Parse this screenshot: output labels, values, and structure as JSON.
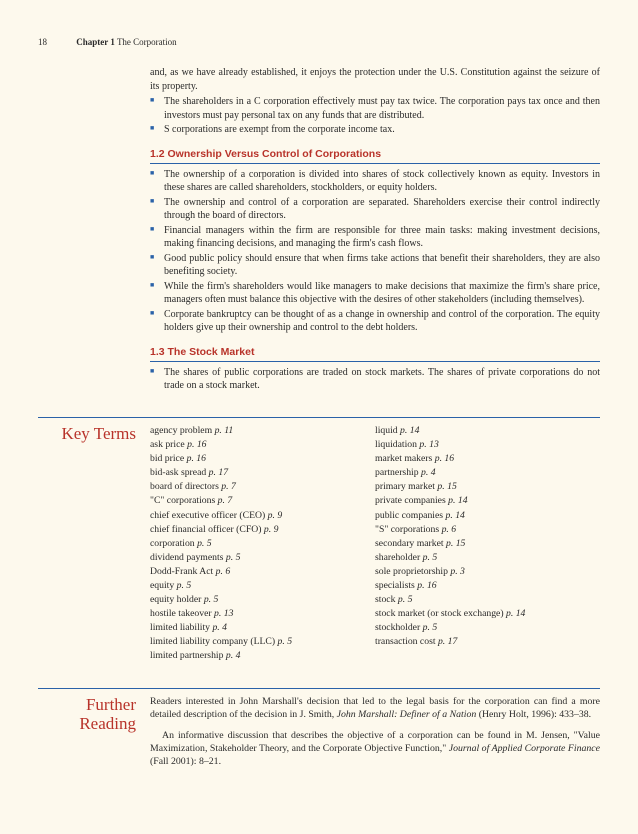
{
  "header": {
    "pageNumber": "18",
    "chapterLabel": "Chapter 1",
    "chapterTitle": "The Corporation"
  },
  "intro": {
    "para": "and, as we have already established, it enjoys the protection under the U.S. Constitution against the seizure of its property.",
    "bullets": [
      "The shareholders in a C corporation effectively must pay tax twice. The corporation pays tax once and then investors must pay personal tax on any funds that are distributed.",
      "S corporations are exempt from the corporate income tax."
    ]
  },
  "section12": {
    "heading": "1.2  Ownership Versus Control of Corporations",
    "bullets": [
      "The ownership of a corporation is divided into shares of stock collectively known as equity. Investors in these shares are called shareholders, stockholders, or equity holders.",
      "The ownership and control of a corporation are separated. Shareholders exercise their control indirectly through the board of directors.",
      "Financial managers within the firm are responsible for three main tasks: making investment decisions, making financing decisions, and managing the firm's cash flows.",
      "Good public policy should ensure that when firms take actions that benefit their shareholders, they are also benefiting society.",
      "While the firm's shareholders would like managers to make decisions that maximize the firm's share price, managers often must balance this objective with the desires of other stakeholders (including themselves).",
      "Corporate bankruptcy can be thought of as a change in ownership and control of the corporation. The equity holders give up their ownership and control to the debt holders."
    ]
  },
  "section13": {
    "heading": "1.3  The Stock Market",
    "bullets": [
      "The shares of public corporations are traded on stock markets. The shares of private corporations do not trade on a stock market."
    ]
  },
  "keyTerms": {
    "label": "Key Terms",
    "left": [
      {
        "t": "agency problem",
        "p": "p. 11"
      },
      {
        "t": "ask price",
        "p": "p. 16"
      },
      {
        "t": "bid price",
        "p": "p. 16"
      },
      {
        "t": "bid-ask spread",
        "p": "p. 17"
      },
      {
        "t": "board of directors",
        "p": "p. 7"
      },
      {
        "t": "\"C\" corporations",
        "p": "p. 7"
      },
      {
        "t": "chief executive officer (CEO)",
        "p": "p. 9"
      },
      {
        "t": "chief financial officer (CFO)",
        "p": "p. 9"
      },
      {
        "t": "corporation",
        "p": "p. 5"
      },
      {
        "t": "dividend payments",
        "p": "p. 5"
      },
      {
        "t": "Dodd-Frank Act",
        "p": "p. 6"
      },
      {
        "t": "equity",
        "p": "p. 5"
      },
      {
        "t": "equity holder",
        "p": "p. 5"
      },
      {
        "t": "hostile takeover",
        "p": "p. 13"
      },
      {
        "t": "limited liability",
        "p": "p. 4"
      },
      {
        "t": "limited liability company (LLC)",
        "p": "p. 5"
      },
      {
        "t": "limited partnership",
        "p": "p. 4"
      }
    ],
    "right": [
      {
        "t": "liquid",
        "p": "p. 14"
      },
      {
        "t": "liquidation",
        "p": "p. 13"
      },
      {
        "t": "market makers",
        "p": "p. 16"
      },
      {
        "t": "partnership",
        "p": "p. 4"
      },
      {
        "t": "primary market",
        "p": "p. 15"
      },
      {
        "t": "private companies",
        "p": "p. 14"
      },
      {
        "t": "public companies",
        "p": "p. 14"
      },
      {
        "t": "\"S\" corporations",
        "p": "p. 6"
      },
      {
        "t": "secondary market",
        "p": "p. 15"
      },
      {
        "t": "shareholder",
        "p": "p. 5"
      },
      {
        "t": "sole proprietorship",
        "p": "p. 3"
      },
      {
        "t": "specialists",
        "p": "p. 16"
      },
      {
        "t": "stock",
        "p": "p. 5"
      },
      {
        "t": "stock market (or stock exchange)",
        "p": "p. 14"
      },
      {
        "t": "stockholder",
        "p": "p. 5"
      },
      {
        "t": "transaction cost",
        "p": "p. 17"
      }
    ]
  },
  "furtherReading": {
    "label": "Further Reading",
    "p1_a": "Readers interested in John Marshall's decision that led to the legal basis for the corporation can find a more detailed description of the decision in J. Smith, ",
    "p1_i": "John Marshall: Definer of a Nation",
    "p1_b": " (Henry Holt, 1996): 433–38.",
    "p2_a": "An informative discussion that describes the objective of a corporation can be found in M. Jensen, \"Value Maximization, Stakeholder Theory, and the Corporate Objective Function,\" ",
    "p2_i": "Journal of Applied Corporate Finance",
    "p2_b": " (Fall 2001): 8–21."
  }
}
